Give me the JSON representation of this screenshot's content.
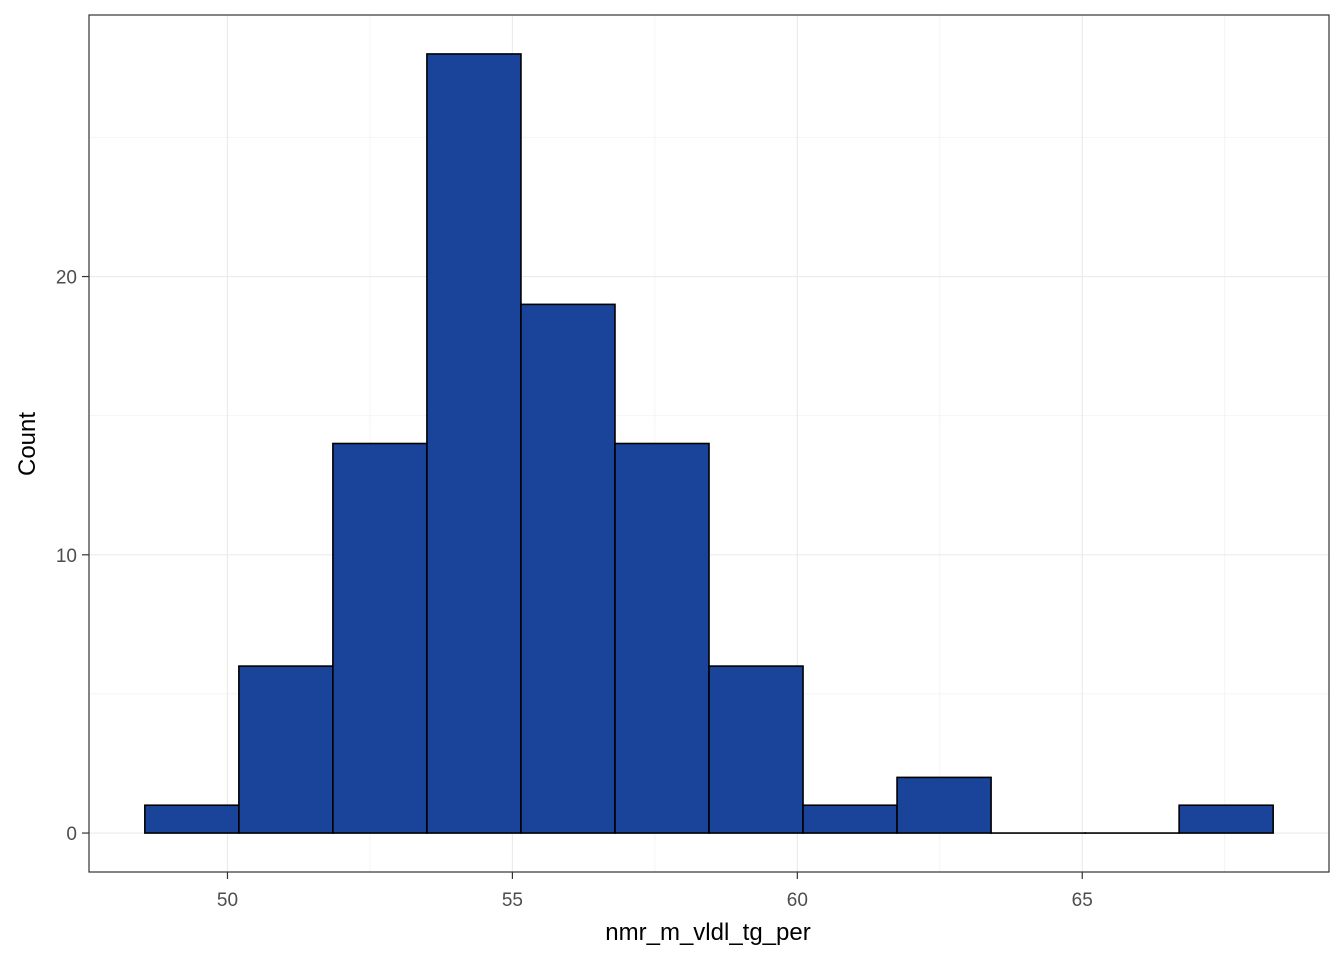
{
  "chart_data": {
    "type": "bar",
    "subtype": "histogram",
    "xlabel": "nmr_m_vldl_tg_per",
    "ylabel": "Count",
    "bins": [
      {
        "x0": 48.55,
        "x1": 50.2,
        "count": 1
      },
      {
        "x0": 50.2,
        "x1": 51.85,
        "count": 6
      },
      {
        "x0": 51.85,
        "x1": 53.5,
        "count": 14
      },
      {
        "x0": 53.5,
        "x1": 55.15,
        "count": 28
      },
      {
        "x0": 55.15,
        "x1": 56.8,
        "count": 19
      },
      {
        "x0": 56.8,
        "x1": 58.45,
        "count": 14
      },
      {
        "x0": 58.45,
        "x1": 60.1,
        "count": 6
      },
      {
        "x0": 60.1,
        "x1": 61.75,
        "count": 1
      },
      {
        "x0": 61.75,
        "x1": 63.4,
        "count": 2
      },
      {
        "x0": 63.4,
        "x1": 65.05,
        "count": 0
      },
      {
        "x0": 65.05,
        "x1": 66.7,
        "count": 0
      },
      {
        "x0": 66.7,
        "x1": 68.35,
        "count": 1
      }
    ],
    "x_ticks": [
      50,
      55,
      60,
      65
    ],
    "y_ticks": [
      0,
      10,
      20
    ],
    "xlim": [
      47.57,
      69.33
    ],
    "ylim": [
      -1.4,
      29.4
    ],
    "grid": true,
    "legend": "none",
    "colors": {
      "bar_fill": "#1a4499",
      "bar_stroke": "#000000",
      "grid_major": "#ebebeb",
      "grid_minor": "#f4f4f4",
      "panel_border": "#333333",
      "tick_label": "#4d4d4d"
    }
  }
}
